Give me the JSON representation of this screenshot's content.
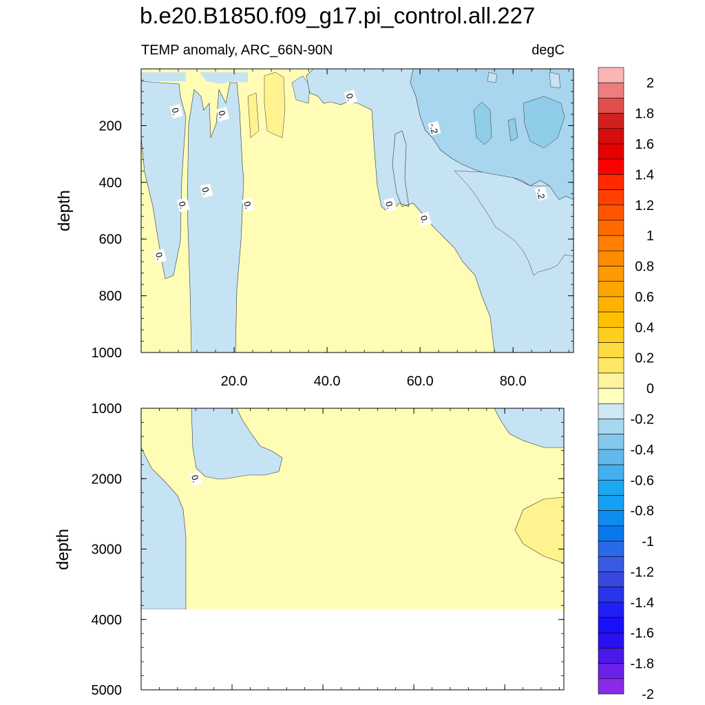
{
  "title": "b.e20.B1850.f09_g17.pi_control.all.227",
  "subtitle": "TEMP anomaly, ARC_66N-90N",
  "units": "degC",
  "chart_data": [
    {
      "type": "heatmap",
      "panel": "upper",
      "ylabel": "depth",
      "x_ticks": [
        "20.0",
        "40.0",
        "60.0",
        "80.0"
      ],
      "x_tick_values": [
        20,
        40,
        60,
        80
      ],
      "xlim": [
        0,
        93
      ],
      "y_ticks": [
        "200",
        "400",
        "600",
        "800",
        "1000"
      ],
      "y_tick_values": [
        200,
        400,
        600,
        800,
        1000
      ],
      "ylim": [
        1000,
        0
      ],
      "contour_labels": [
        {
          "text": "0.",
          "x": 7.5,
          "y": 150
        },
        {
          "text": "0.",
          "x": 17.5,
          "y": 160
        },
        {
          "text": "0.",
          "x": 45,
          "y": 100
        },
        {
          "text": "-.2",
          "x": 63,
          "y": 210
        },
        {
          "text": "0.",
          "x": 14,
          "y": 430
        },
        {
          "text": "0.",
          "x": 9,
          "y": 480
        },
        {
          "text": "0.",
          "x": 23,
          "y": 480
        },
        {
          "text": "0.",
          "x": 53.5,
          "y": 480
        },
        {
          "text": "0.",
          "x": 61,
          "y": 530
        },
        {
          "text": "-.2",
          "x": 86,
          "y": 440
        },
        {
          "text": "0.",
          "x": 4,
          "y": 660
        }
      ]
    },
    {
      "type": "heatmap",
      "panel": "lower",
      "ylabel": "depth",
      "y_ticks": [
        "1000",
        "2000",
        "3000",
        "4000",
        "5000"
      ],
      "y_tick_values": [
        1000,
        2000,
        3000,
        4000,
        5000
      ],
      "ylim": [
        5000,
        1000
      ],
      "xlim": [
        0,
        93
      ],
      "contour_labels": [
        {
          "text": "0.",
          "x": 12,
          "y": 2000
        }
      ]
    }
  ],
  "colorbar": {
    "labels": [
      "2",
      "1.8",
      "1.6",
      "1.4",
      "1.2",
      "1",
      "0.8",
      "0.6",
      "0.4",
      "0.2",
      "0",
      "-0.2",
      "-0.4",
      "-0.6",
      "-0.8",
      "-1",
      "-1.2",
      "-1.4",
      "-1.6",
      "-1.8",
      "-2"
    ],
    "colors": [
      "#f9b6b6",
      "#ee7d7d",
      "#e04e4e",
      "#d02020",
      "#d70d0d",
      "#e60000",
      "#ff0000",
      "#ff2a00",
      "#ff4000",
      "#ff5500",
      "#ff6a00",
      "#ff7f00",
      "#ff8c00",
      "#ff9900",
      "#ffa500",
      "#ffb300",
      "#ffc000",
      "#fecd20",
      "#fedb40",
      "#fee765",
      "#fff3a0",
      "#ffffbf",
      "#cfe7f5",
      "#a8d8f0",
      "#85c7ea",
      "#63b9ea",
      "#45b0f0",
      "#1ca8f0",
      "#16a0f4",
      "#0f8cf0",
      "#0a78ec",
      "#2a6ae8",
      "#3a5ae2",
      "#3a48e0",
      "#2a34e8",
      "#1f1ff5",
      "#1a10f8",
      "#2a10f0",
      "#4a18e8",
      "#6a20e8",
      "#8a2ae8"
    ]
  }
}
